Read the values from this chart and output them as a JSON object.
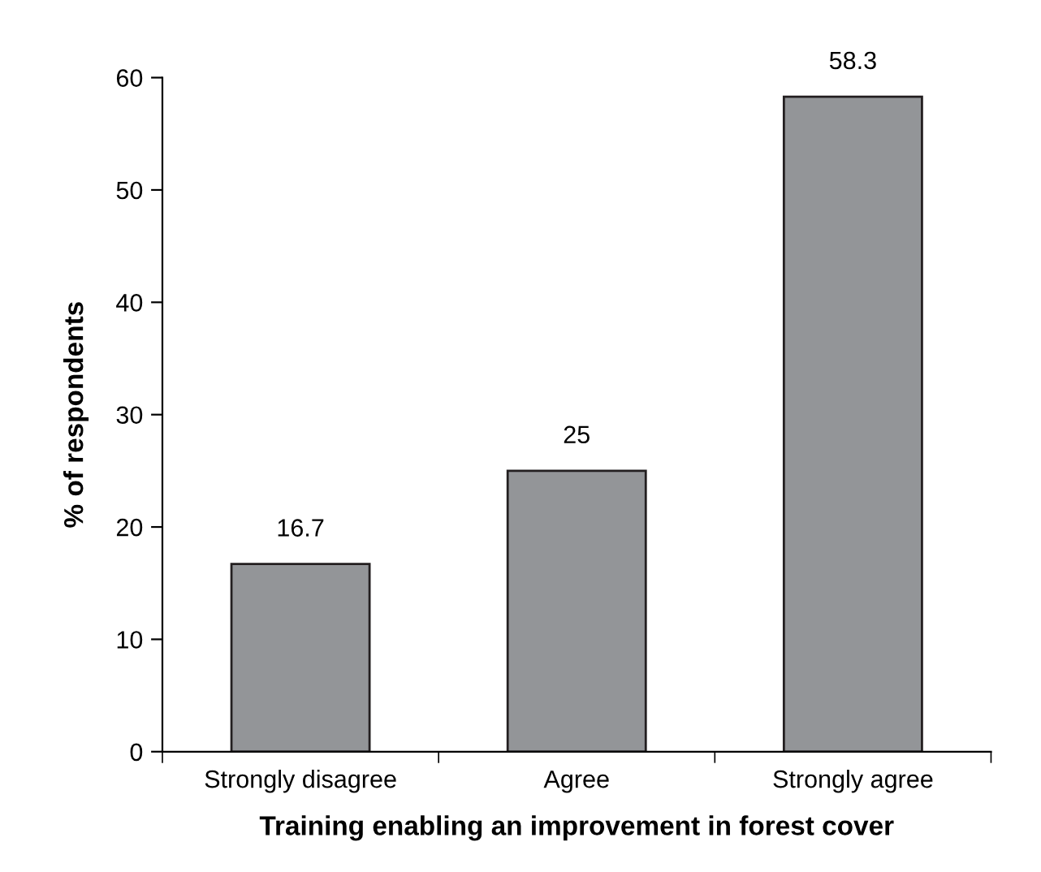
{
  "chart_data": {
    "type": "bar",
    "xlabel": "Training enabling an improvement in forest cover",
    "ylabel": "% of respondents",
    "categories": [
      "Strongly disagree",
      "Agree",
      "Strongly agree"
    ],
    "values": [
      16.7,
      25,
      58.3
    ],
    "color": "#939598",
    "ylim": [
      0,
      60
    ],
    "yticks": [
      0,
      10,
      20,
      30,
      40,
      50,
      60
    ],
    "grid": false,
    "data_labels": true
  }
}
